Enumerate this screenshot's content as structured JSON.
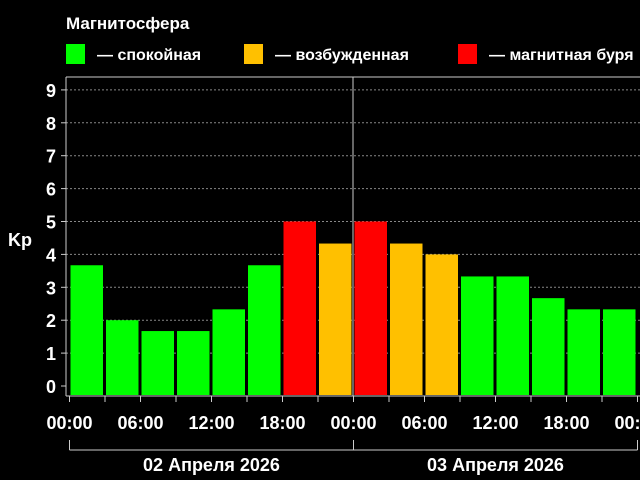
{
  "chart_data": {
    "type": "bar",
    "title": "Магнитосфера",
    "ylabel": "Kp",
    "xlabel": "",
    "ylim": [
      0,
      9
    ],
    "yticks": [
      "0",
      "1",
      "2",
      "3",
      "4",
      "5",
      "6",
      "7",
      "8",
      "9"
    ],
    "grid": true,
    "legend_placement": "top",
    "legend": [
      {
        "label": "— спокойная",
        "color": "#00ff00"
      },
      {
        "label": "— возбужденная",
        "color": "#ffc000"
      },
      {
        "label": "— магнитная буря",
        "color": "#ff0000"
      }
    ],
    "xtick_labels": [
      "00:00",
      "06:00",
      "12:00",
      "18:00",
      "00:00",
      "06:00",
      "12:00",
      "18:00",
      "00:00"
    ],
    "days": [
      "02 Апреля 2026",
      "03 Апреля 2026"
    ],
    "values": [
      3.67,
      2.0,
      1.67,
      1.67,
      2.33,
      3.67,
      5.0,
      4.33,
      5.0,
      4.33,
      4.0,
      3.33,
      3.33,
      2.67,
      2.33,
      2.33
    ],
    "bar_colors": [
      "#00ff00",
      "#00ff00",
      "#00ff00",
      "#00ff00",
      "#00ff00",
      "#00ff00",
      "#ff0000",
      "#ffc000",
      "#ff0000",
      "#ffc000",
      "#ffc000",
      "#00ff00",
      "#00ff00",
      "#00ff00",
      "#00ff00",
      "#00ff00"
    ]
  }
}
